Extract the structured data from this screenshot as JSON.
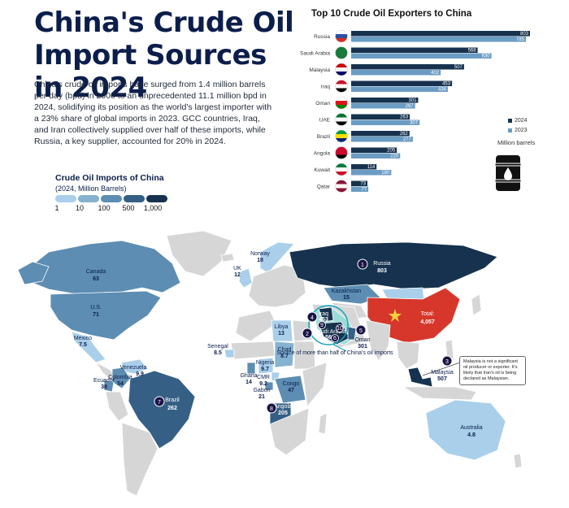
{
  "header": {
    "title": "China's Crude Oil Import Sources in 2024",
    "intro": "China's crude oil imports have surged from 1.4 million barrels per day (bpd) in 2000 to an unprecedented 11.1 million bpd in 2024, solidifying its position as the world's largest importer with a 23% share of global imports in 2023. GCC countries, Iraq, and Iran collectively supplied over half of these imports, while Russia, a key supplier, accounted for 20% in 2024."
  },
  "legend": {
    "title": "Crude Oil Imports of China",
    "subtitle": "(2024, Million Barrels)",
    "breaks": [
      "1",
      "10",
      "100",
      "500",
      "1,000"
    ],
    "colors": [
      "#a9cfea",
      "#85b2d1",
      "#5d8db2",
      "#355f85",
      "#16324e"
    ]
  },
  "chart_data": [
    {
      "type": "bar",
      "title": "Top 10 Crude Oil Exporters to China",
      "unit": "Million barrels",
      "categories": [
        "Russia",
        "Saudi Arabia",
        "Malaysia",
        "Iraq",
        "Oman",
        "UAE",
        "Brazil",
        "Angola",
        "Kuwait",
        "Qatar"
      ],
      "series": [
        {
          "name": "2024",
          "color": "#16324e",
          "values": [
            803,
            568,
            507,
            453,
            301,
            263,
            262,
            205,
            114,
            73
          ]
        },
        {
          "name": "2023",
          "color": "#6b9cc3",
          "values": [
            785,
            630,
            402,
            434,
            287,
            307,
            277,
            220,
            180,
            77
          ]
        }
      ],
      "xlim": [
        0,
        803
      ]
    },
    {
      "type": "map",
      "title": "Crude Oil Imports of China",
      "china": {
        "name": "Total:",
        "value": "4,057"
      },
      "regions": [
        {
          "name": "Canada",
          "value": "63"
        },
        {
          "name": "U.S.",
          "value": "71"
        },
        {
          "name": "Mexico",
          "value": "7.5"
        },
        {
          "name": "Norway",
          "value": "18"
        },
        {
          "name": "UK",
          "value": "12"
        },
        {
          "name": "Russia",
          "value": "803",
          "rank": "1"
        },
        {
          "name": "Kazakhstan",
          "value": "15"
        },
        {
          "name": "Libya",
          "value": "13"
        },
        {
          "name": "Chad",
          "value": "8.7"
        },
        {
          "name": "Senegal",
          "value": "8.5"
        },
        {
          "name": "Nigeria",
          "value": "9.7"
        },
        {
          "name": "Ghana",
          "value": "14"
        },
        {
          "name": "CMR",
          "value": "9.2"
        },
        {
          "name": "Gabon",
          "value": "21"
        },
        {
          "name": "Congo",
          "value": "47"
        },
        {
          "name": "Angola",
          "value": "205",
          "rank": "8"
        },
        {
          "name": "Venezuela",
          "value": "9.9"
        },
        {
          "name": "Colombia",
          "value": "54"
        },
        {
          "name": "Ecuador",
          "value": "38"
        },
        {
          "name": "Brazil",
          "value": "262",
          "rank": "7"
        },
        {
          "name": "Iraq",
          "value": "453",
          "rank": "4"
        },
        {
          "name": "Saudi Arabia",
          "value": "568",
          "rank": "2"
        },
        {
          "name": "Oman",
          "value": "301",
          "rank": "5"
        },
        {
          "name": "Malaysia",
          "value": "507",
          "rank": "3"
        },
        {
          "name": "Australia",
          "value": "4.8"
        }
      ],
      "gulf_ranks": [
        "9",
        "10",
        "6"
      ],
      "gulf_note": "Source of more than half of China's oil imports",
      "malaysia_note": "Malaysia is not a significant oil producer or exporter. It's likely that Iran's oil is being declared as Malaysian."
    }
  ]
}
